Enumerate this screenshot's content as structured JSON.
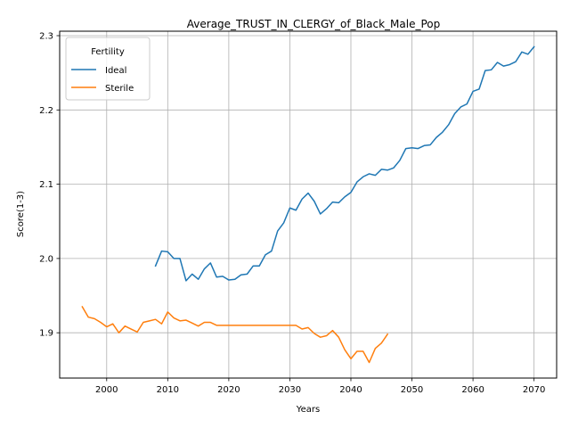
{
  "chart_data": {
    "type": "line",
    "title": "Average_TRUST_IN_CLERGY_of_Black_Male_Pop",
    "xlabel": "Years",
    "ylabel": "Score(1-3)",
    "xlim": [
      1992.3,
      2073.7
    ],
    "ylim": [
      1.839,
      2.306
    ],
    "xticks": [
      2000,
      2010,
      2020,
      2030,
      2040,
      2050,
      2060,
      2070
    ],
    "yticks": [
      1.9,
      2.0,
      2.1,
      2.2,
      2.3
    ],
    "ytick_labels": [
      "1.9",
      "2.0",
      "2.1",
      "2.2",
      "2.3"
    ],
    "grid": true,
    "legend": {
      "title": "Fertility",
      "placement": "top-left"
    },
    "series": [
      {
        "name": "Ideal",
        "color": "#1f77b4",
        "points": [
          [
            2008,
            1.99
          ],
          [
            2009,
            2.01
          ],
          [
            2010,
            2.009
          ],
          [
            2011,
            2.0
          ],
          [
            2012,
            2.0
          ],
          [
            2013,
            1.97
          ],
          [
            2014,
            1.979
          ],
          [
            2015,
            1.972
          ],
          [
            2016,
            1.986
          ],
          [
            2017,
            1.994
          ],
          [
            2018,
            1.975
          ],
          [
            2019,
            1.976
          ],
          [
            2020,
            1.971
          ],
          [
            2021,
            1.972
          ],
          [
            2022,
            1.978
          ],
          [
            2023,
            1.979
          ],
          [
            2024,
            1.99
          ],
          [
            2025,
            1.99
          ],
          [
            2026,
            2.005
          ],
          [
            2027,
            2.01
          ],
          [
            2028,
            2.037
          ],
          [
            2029,
            2.048
          ],
          [
            2030,
            2.068
          ],
          [
            2031,
            2.065
          ],
          [
            2032,
            2.08
          ],
          [
            2033,
            2.088
          ],
          [
            2034,
            2.077
          ],
          [
            2035,
            2.06
          ],
          [
            2036,
            2.067
          ],
          [
            2037,
            2.076
          ],
          [
            2038,
            2.075
          ],
          [
            2039,
            2.083
          ],
          [
            2040,
            2.089
          ],
          [
            2041,
            2.103
          ],
          [
            2042,
            2.11
          ],
          [
            2043,
            2.114
          ],
          [
            2044,
            2.112
          ],
          [
            2045,
            2.12
          ],
          [
            2046,
            2.119
          ],
          [
            2047,
            2.122
          ],
          [
            2048,
            2.132
          ],
          [
            2049,
            2.148
          ],
          [
            2050,
            2.149
          ],
          [
            2051,
            2.148
          ],
          [
            2052,
            2.152
          ],
          [
            2053,
            2.153
          ],
          [
            2054,
            2.163
          ],
          [
            2055,
            2.17
          ],
          [
            2056,
            2.18
          ],
          [
            2057,
            2.195
          ],
          [
            2058,
            2.204
          ],
          [
            2059,
            2.208
          ],
          [
            2060,
            2.225
          ],
          [
            2061,
            2.228
          ],
          [
            2062,
            2.253
          ],
          [
            2063,
            2.254
          ],
          [
            2064,
            2.264
          ],
          [
            2065,
            2.259
          ],
          [
            2066,
            2.261
          ],
          [
            2067,
            2.265
          ],
          [
            2068,
            2.278
          ],
          [
            2069,
            2.275
          ],
          [
            2070,
            2.285
          ]
        ]
      },
      {
        "name": "Sterile",
        "color": "#ff7f0e",
        "points": [
          [
            1996,
            1.935
          ],
          [
            1997,
            1.921
          ],
          [
            1998,
            1.919
          ],
          [
            1999,
            1.914
          ],
          [
            2000,
            1.908
          ],
          [
            2001,
            1.912
          ],
          [
            2002,
            1.9
          ],
          [
            2003,
            1.909
          ],
          [
            2004,
            1.905
          ],
          [
            2005,
            1.901
          ],
          [
            2006,
            1.914
          ],
          [
            2007,
            1.916
          ],
          [
            2008,
            1.918
          ],
          [
            2009,
            1.912
          ],
          [
            2010,
            1.928
          ],
          [
            2011,
            1.92
          ],
          [
            2012,
            1.916
          ],
          [
            2013,
            1.917
          ],
          [
            2014,
            1.913
          ],
          [
            2015,
            1.909
          ],
          [
            2016,
            1.914
          ],
          [
            2017,
            1.914
          ],
          [
            2018,
            1.91
          ],
          [
            2019,
            1.91
          ],
          [
            2020,
            1.91
          ],
          [
            2021,
            1.91
          ],
          [
            2022,
            1.91
          ],
          [
            2023,
            1.91
          ],
          [
            2024,
            1.91
          ],
          [
            2025,
            1.91
          ],
          [
            2026,
            1.91
          ],
          [
            2027,
            1.91
          ],
          [
            2028,
            1.91
          ],
          [
            2029,
            1.91
          ],
          [
            2030,
            1.91
          ],
          [
            2031,
            1.91
          ],
          [
            2032,
            1.905
          ],
          [
            2033,
            1.907
          ],
          [
            2034,
            1.899
          ],
          [
            2035,
            1.894
          ],
          [
            2036,
            1.896
          ],
          [
            2037,
            1.903
          ],
          [
            2038,
            1.894
          ],
          [
            2039,
            1.877
          ],
          [
            2040,
            1.865
          ],
          [
            2041,
            1.875
          ],
          [
            2042,
            1.875
          ],
          [
            2043,
            1.86
          ],
          [
            2044,
            1.879
          ],
          [
            2045,
            1.886
          ],
          [
            2046,
            1.898
          ]
        ]
      }
    ]
  }
}
